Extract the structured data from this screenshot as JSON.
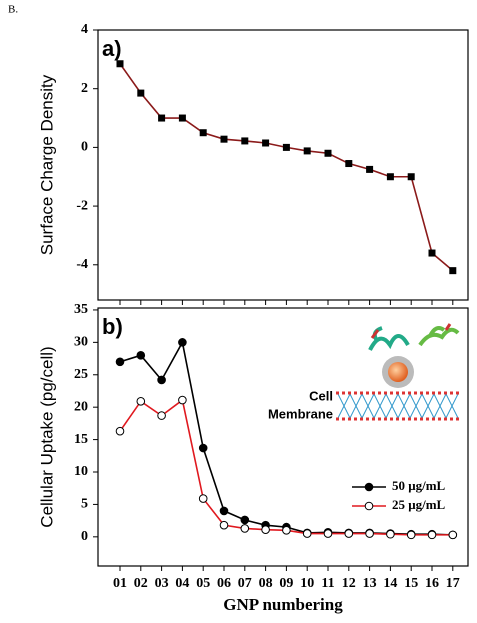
{
  "label": "B.",
  "chart_data": [
    {
      "type": "line",
      "panel_label": "a)",
      "ylabel": "Surface Charge Density",
      "ylim": [
        -5.2,
        4
      ],
      "yticks": [
        -4,
        -2,
        0,
        2,
        4
      ],
      "series": [
        {
          "color": "#8b1a1a",
          "marker": "square",
          "marker_fill": "#000000",
          "values": [
            2.85,
            1.85,
            1.0,
            1.0,
            0.5,
            0.28,
            0.22,
            0.15,
            0.0,
            -0.12,
            -0.2,
            -0.55,
            -0.75,
            -1.0,
            -1.0,
            -3.6,
            -4.2
          ]
        }
      ]
    },
    {
      "type": "line",
      "panel_label": "b)",
      "ylabel": "Cellular Uptake (pg/cell)",
      "xlabel": "GNP numbering",
      "categories": [
        "01",
        "02",
        "03",
        "04",
        "05",
        "06",
        "07",
        "08",
        "09",
        "10",
        "11",
        "12",
        "13",
        "14",
        "15",
        "16",
        "17"
      ],
      "ylim": [
        -4.5,
        35.3
      ],
      "yticks": [
        0,
        5,
        10,
        15,
        20,
        25,
        30,
        35
      ],
      "annotations": [
        "Cell",
        "Membrane"
      ],
      "series": [
        {
          "name": "50 μg/mL",
          "color": "#000000",
          "marker": "circle",
          "marker_fill": "#000000",
          "values": [
            27,
            28,
            24.2,
            30,
            13.7,
            4,
            2.6,
            1.8,
            1.5,
            0.6,
            0.7,
            0.6,
            0.6,
            0.5,
            0.4,
            0.4,
            0.3
          ]
        },
        {
          "name": "25 μg/mL",
          "color": "#e0191f",
          "marker": "circle",
          "marker_fill": "#ffffff",
          "values": [
            16.3,
            20.9,
            18.7,
            21.1,
            5.9,
            1.8,
            1.3,
            1.1,
            1.0,
            0.5,
            0.5,
            0.5,
            0.5,
            0.4,
            0.3,
            0.3,
            0.3
          ]
        }
      ]
    }
  ]
}
